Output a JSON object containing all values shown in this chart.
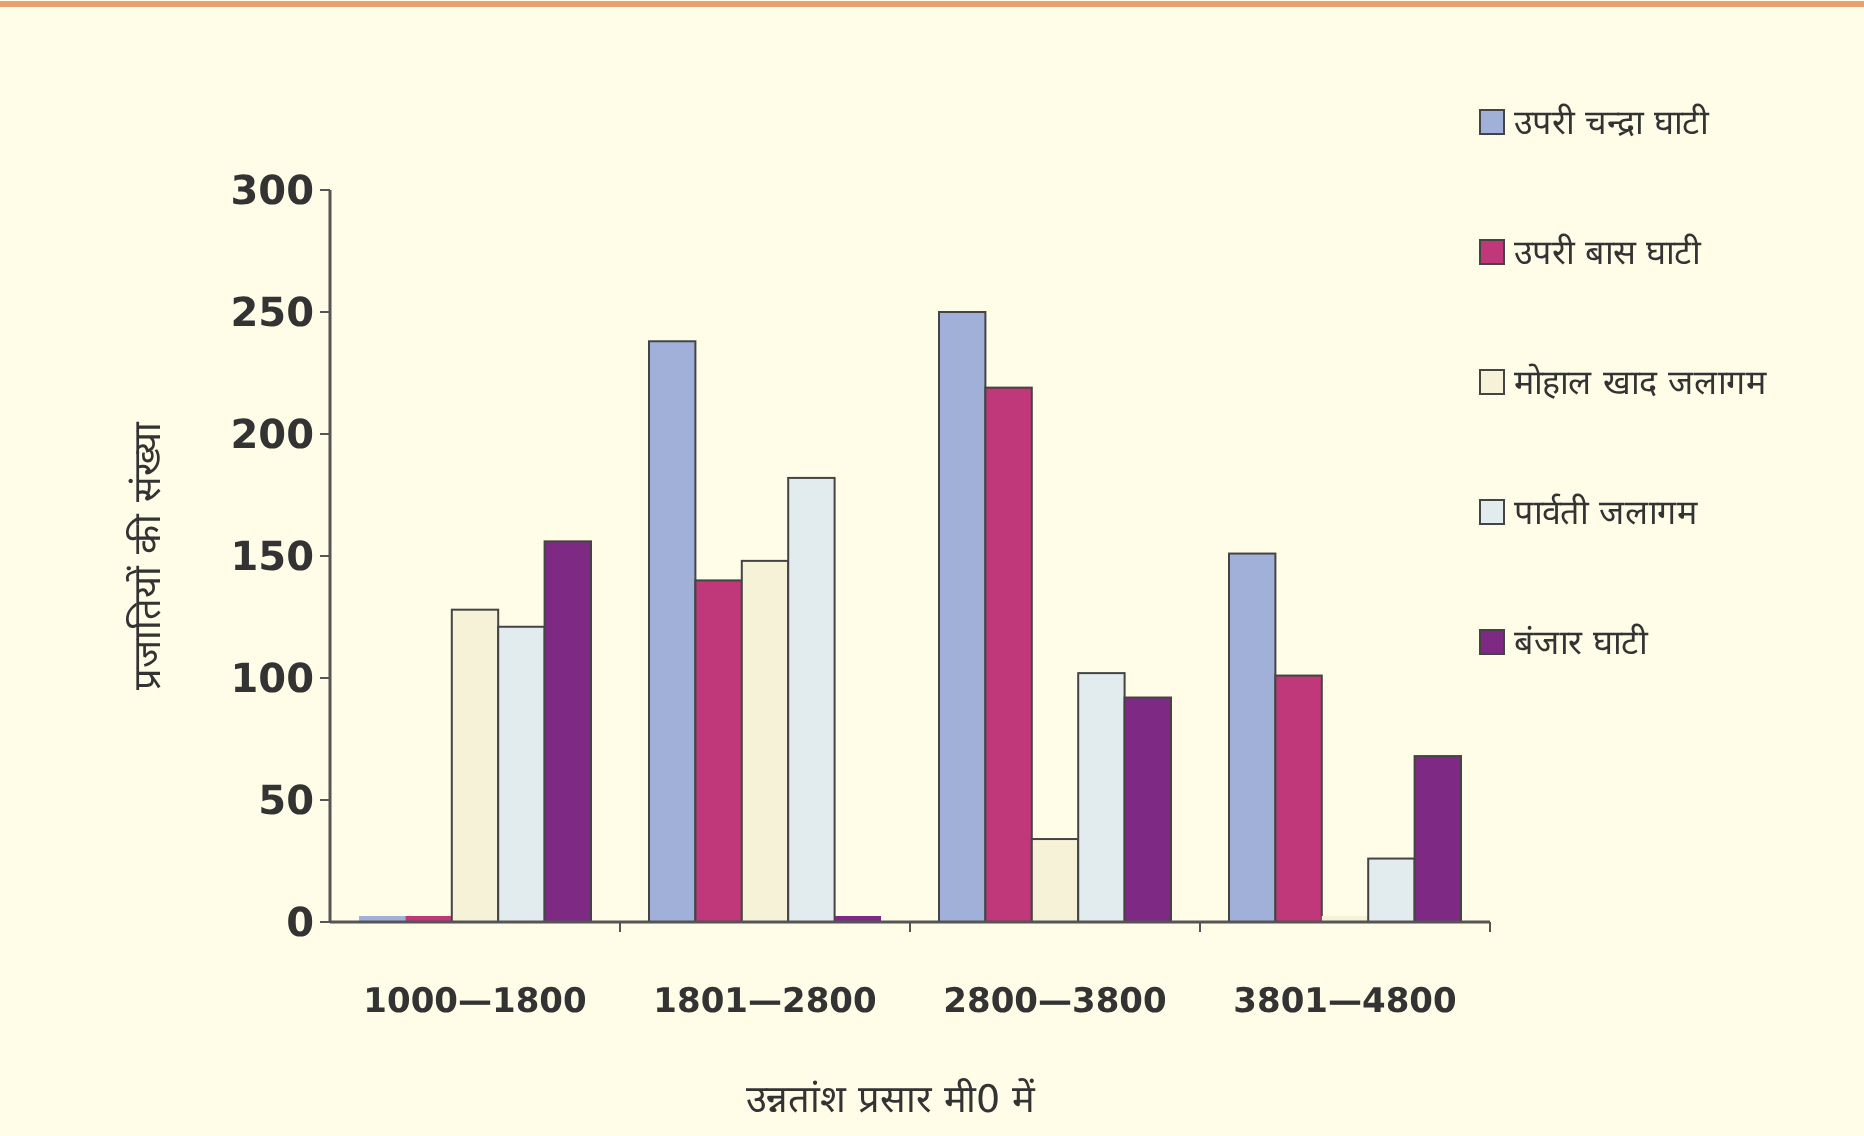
{
  "chart_data": {
    "type": "bar",
    "xlabel": "उन्नतांश प्रसार मी0 में",
    "ylabel": "प्रजातियों की संख्या",
    "categories": [
      "1000—1800",
      "1801—2800",
      "2800—3800",
      "3801—4800"
    ],
    "series": [
      {
        "name": "उपरी चन्द्रा घाटी",
        "color": "#a0b0d8",
        "values": [
          0,
          238,
          250,
          151
        ]
      },
      {
        "name": "उपरी बास घाटी",
        "color": "#c0387a",
        "values": [
          0,
          140,
          219,
          101
        ]
      },
      {
        "name": "मोहाल खाद जलागम",
        "color": "#f6f2d8",
        "values": [
          128,
          148,
          34,
          0
        ]
      },
      {
        "name": "पार्वती जलागम",
        "color": "#e2ecee",
        "values": [
          121,
          182,
          102,
          26
        ]
      },
      {
        "name": "बंजार घाटी",
        "color": "#7e2a84",
        "values": [
          156,
          0,
          92,
          68
        ]
      }
    ],
    "ylim": [
      0,
      300
    ],
    "yticks": [
      0,
      50,
      100,
      150,
      200,
      250,
      300
    ],
    "grid": false,
    "legend": "right"
  }
}
